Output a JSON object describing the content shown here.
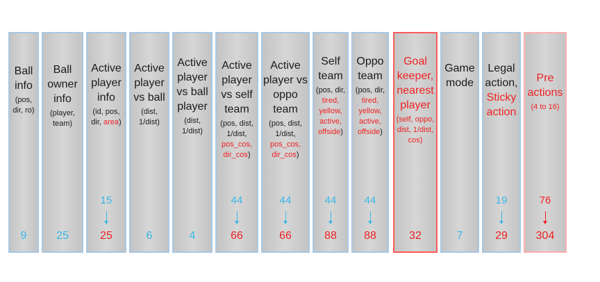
{
  "columns": [
    {
      "title": "Ball info",
      "sub": "(pos, dir, ro)",
      "bottom": "9"
    },
    {
      "title": "Ball owner info",
      "sub": "(player, team)",
      "bottom": "25"
    },
    {
      "title": "Active player info",
      "sub": "(id, pos, dir, ",
      "sub_red": "area",
      "sub_end": ")",
      "mid": "15",
      "bottom": "25"
    },
    {
      "title": "Active player vs ball",
      "sub": "(dist, 1/dist)",
      "bottom": "6"
    },
    {
      "title": "Active player vs ball player",
      "sub": "(dist, 1/dist)",
      "bottom": "4"
    },
    {
      "title": "Active player vs self team",
      "sub": "(pos, dist, 1/dist, ",
      "sub_red": "pos_cos, dir_cos",
      "sub_end": ")",
      "mid": "44",
      "bottom": "66"
    },
    {
      "title": "Active player vs oppo team",
      "sub": "(pos, dist, 1/dist, ",
      "sub_red": "pos_cos, dir_cos",
      "sub_end": ")",
      "mid": "44",
      "bottom": "66"
    },
    {
      "title": "Self team",
      "sub": "(pos, dir, ",
      "sub_red": "tired, yellow, active, offside",
      "sub_end": ")",
      "mid": "44",
      "bottom": "88"
    },
    {
      "title": "Oppo team",
      "sub": "(pos, dir, ",
      "sub_red": "tired, yellow, active, offside",
      "sub_end": ")",
      "mid": "44",
      "bottom": "88"
    },
    {
      "title": "Goal keeper, nearest player",
      "sub": "(self, oppo, dist, 1/dist, cos)",
      "bottom": "32"
    },
    {
      "title": "Game mode",
      "bottom": "7"
    },
    {
      "title": "Legal action,",
      "title_red": "Sticky action",
      "mid": "19",
      "bottom": "29"
    },
    {
      "title": "Pre actions",
      "sub": "(4 to 16)",
      "mid": "76",
      "bottom": "304"
    }
  ],
  "colors": {
    "blue": "#3ab7e6",
    "red": "#ee2222",
    "border_blue": "#a8c8e4"
  }
}
